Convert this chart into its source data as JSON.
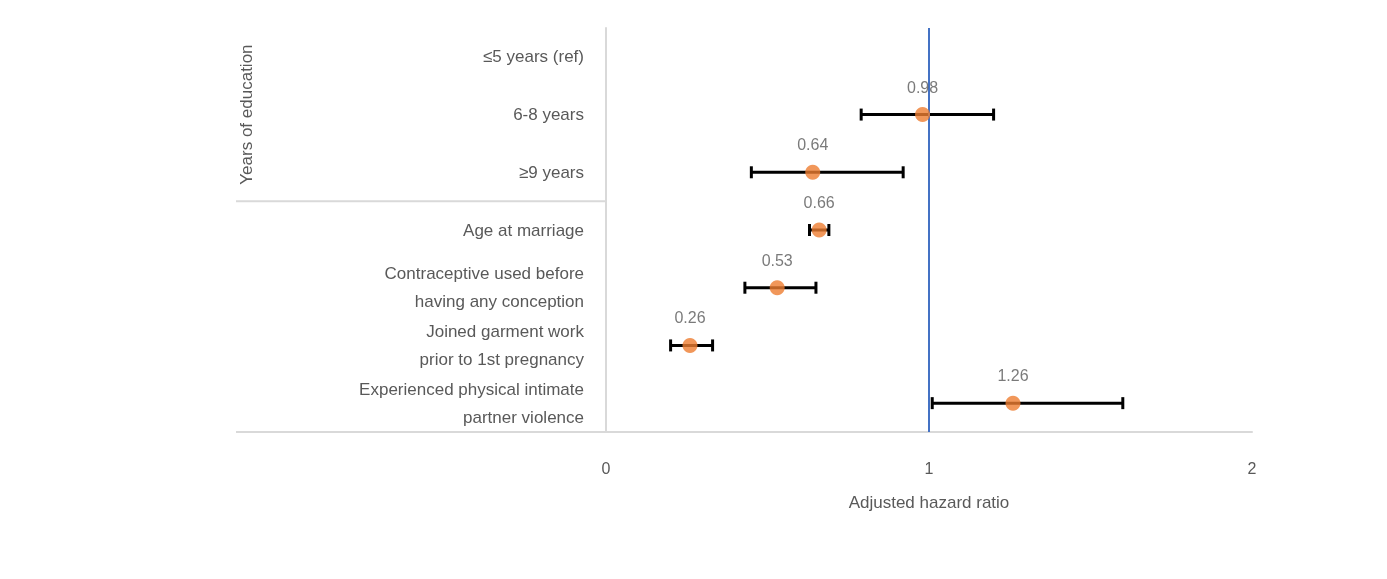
{
  "chart_data": {
    "type": "scatter",
    "orientation": "horizontal",
    "xlabel": "Adjusted hazard ratio",
    "annotations": [
      "Years of education"
    ],
    "categories": [
      "≤5 years (ref)",
      "6-8 years",
      "≥9 years",
      "Age at marriage",
      "Contraceptive used before\nhaving any conception",
      "Joined garment work\nprior to 1st pregnancy",
      "Experienced physical intimate\npartner violence"
    ],
    "series": [
      {
        "color": "#ed7d31",
        "values": [
          null,
          0.98,
          0.64,
          0.66,
          0.53,
          0.26,
          1.26
        ],
        "errors": [
          null,
          [
            0.79,
            1.2
          ],
          [
            0.45,
            0.92
          ],
          [
            0.63,
            0.69
          ],
          [
            0.43,
            0.65
          ],
          [
            0.2,
            0.33
          ],
          [
            1.01,
            1.6
          ]
        ]
      }
    ],
    "xlim": [
      0,
      2
    ],
    "xticks": [
      0,
      1,
      2
    ],
    "grid": false,
    "marker": "circle",
    "data_labels": true,
    "ref_lines": [
      {
        "axis": "x",
        "value": 1,
        "color": "#4472c4"
      }
    ]
  }
}
